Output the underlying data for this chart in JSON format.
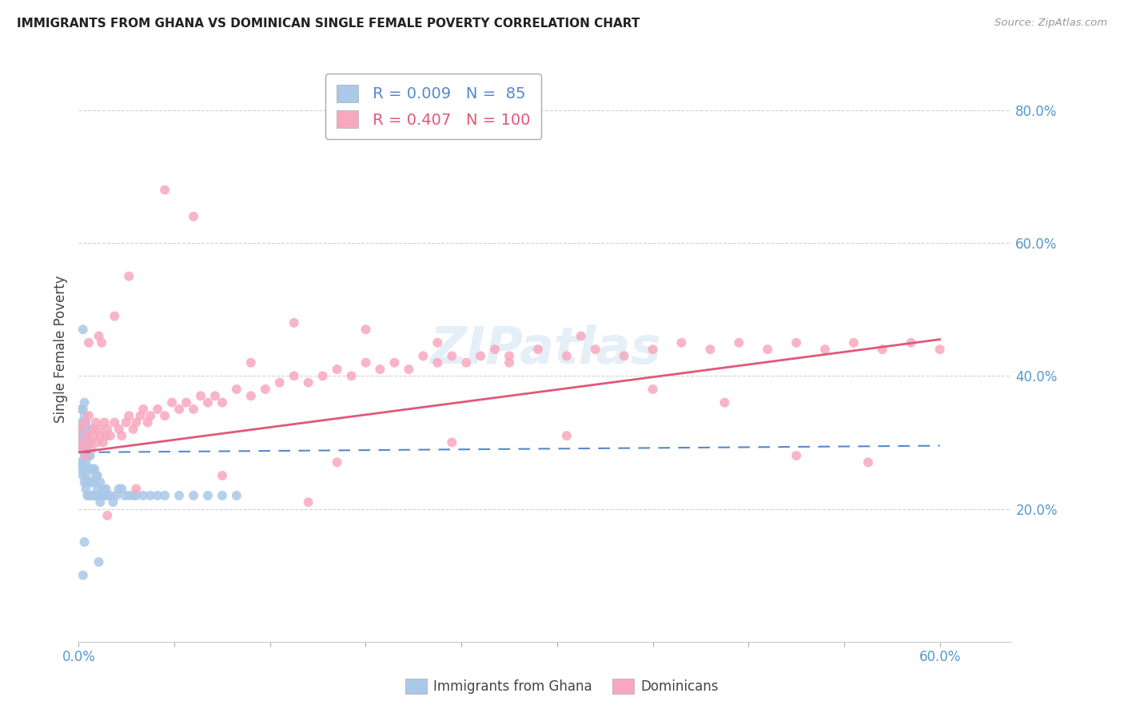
{
  "title": "IMMIGRANTS FROM GHANA VS DOMINICAN SINGLE FEMALE POVERTY CORRELATION CHART",
  "source": "Source: ZipAtlas.com",
  "ylabel": "Single Female Poverty",
  "ytick_labels": [
    "20.0%",
    "40.0%",
    "60.0%",
    "80.0%"
  ],
  "ytick_values": [
    0.2,
    0.4,
    0.6,
    0.8
  ],
  "xlim": [
    0.0,
    0.65
  ],
  "ylim": [
    0.0,
    0.88
  ],
  "ghana_R": 0.009,
  "ghana_N": 85,
  "dominican_R": 0.407,
  "dominican_N": 100,
  "ghana_color": "#aac8e8",
  "dominican_color": "#f8a8be",
  "ghana_line_color": "#5588cc",
  "dominican_line_color": "#e05878",
  "watermark": "ZIPatlas",
  "ghana_trend_x0": 0.0,
  "ghana_trend_y0": 0.285,
  "ghana_trend_x1": 0.6,
  "ghana_trend_y1": 0.295,
  "dominican_trend_x0": 0.0,
  "dominican_trend_y0": 0.285,
  "dominican_trend_x1": 0.6,
  "dominican_trend_y1": 0.455,
  "ghana_scatter_x": [
    0.001,
    0.001,
    0.001,
    0.002,
    0.002,
    0.002,
    0.002,
    0.002,
    0.003,
    0.003,
    0.003,
    0.003,
    0.003,
    0.003,
    0.003,
    0.004,
    0.004,
    0.004,
    0.004,
    0.004,
    0.004,
    0.004,
    0.005,
    0.005,
    0.005,
    0.005,
    0.005,
    0.005,
    0.006,
    0.006,
    0.006,
    0.006,
    0.006,
    0.007,
    0.007,
    0.007,
    0.007,
    0.007,
    0.007,
    0.008,
    0.008,
    0.008,
    0.008,
    0.009,
    0.009,
    0.009,
    0.01,
    0.01,
    0.01,
    0.011,
    0.011,
    0.011,
    0.012,
    0.012,
    0.013,
    0.013,
    0.014,
    0.015,
    0.015,
    0.016,
    0.017,
    0.018,
    0.019,
    0.02,
    0.022,
    0.024,
    0.026,
    0.028,
    0.03,
    0.032,
    0.035,
    0.038,
    0.04,
    0.045,
    0.05,
    0.055,
    0.06,
    0.07,
    0.08,
    0.09,
    0.1,
    0.11,
    0.014,
    0.003,
    0.004
  ],
  "ghana_scatter_y": [
    0.3,
    0.27,
    0.32,
    0.26,
    0.29,
    0.31,
    0.33,
    0.35,
    0.25,
    0.27,
    0.29,
    0.31,
    0.33,
    0.35,
    0.47,
    0.24,
    0.26,
    0.28,
    0.3,
    0.32,
    0.34,
    0.36,
    0.23,
    0.25,
    0.27,
    0.29,
    0.31,
    0.33,
    0.22,
    0.24,
    0.26,
    0.28,
    0.3,
    0.22,
    0.24,
    0.26,
    0.28,
    0.3,
    0.32,
    0.22,
    0.24,
    0.26,
    0.28,
    0.22,
    0.24,
    0.26,
    0.22,
    0.24,
    0.26,
    0.22,
    0.24,
    0.26,
    0.22,
    0.25,
    0.23,
    0.25,
    0.22,
    0.21,
    0.24,
    0.22,
    0.23,
    0.22,
    0.23,
    0.22,
    0.22,
    0.21,
    0.22,
    0.23,
    0.23,
    0.22,
    0.22,
    0.22,
    0.22,
    0.22,
    0.22,
    0.22,
    0.22,
    0.22,
    0.22,
    0.22,
    0.22,
    0.22,
    0.12,
    0.1,
    0.15
  ],
  "dominican_scatter_x": [
    0.001,
    0.002,
    0.003,
    0.004,
    0.005,
    0.006,
    0.007,
    0.008,
    0.009,
    0.01,
    0.011,
    0.012,
    0.013,
    0.014,
    0.015,
    0.016,
    0.017,
    0.018,
    0.019,
    0.02,
    0.022,
    0.025,
    0.028,
    0.03,
    0.033,
    0.035,
    0.038,
    0.04,
    0.043,
    0.045,
    0.048,
    0.05,
    0.055,
    0.06,
    0.065,
    0.07,
    0.075,
    0.08,
    0.085,
    0.09,
    0.095,
    0.1,
    0.11,
    0.12,
    0.13,
    0.14,
    0.15,
    0.16,
    0.17,
    0.18,
    0.19,
    0.2,
    0.21,
    0.22,
    0.23,
    0.24,
    0.25,
    0.26,
    0.27,
    0.28,
    0.29,
    0.3,
    0.32,
    0.34,
    0.36,
    0.38,
    0.4,
    0.42,
    0.44,
    0.46,
    0.48,
    0.5,
    0.52,
    0.54,
    0.56,
    0.58,
    0.6,
    0.007,
    0.014,
    0.025,
    0.035,
    0.06,
    0.08,
    0.12,
    0.15,
    0.2,
    0.25,
    0.3,
    0.35,
    0.4,
    0.45,
    0.5,
    0.55,
    0.16,
    0.02,
    0.04,
    0.1,
    0.18,
    0.26,
    0.34
  ],
  "dominican_scatter_y": [
    0.32,
    0.3,
    0.29,
    0.33,
    0.28,
    0.31,
    0.34,
    0.3,
    0.29,
    0.32,
    0.31,
    0.33,
    0.3,
    0.32,
    0.31,
    0.45,
    0.3,
    0.33,
    0.31,
    0.32,
    0.31,
    0.33,
    0.32,
    0.31,
    0.33,
    0.34,
    0.32,
    0.33,
    0.34,
    0.35,
    0.33,
    0.34,
    0.35,
    0.34,
    0.36,
    0.35,
    0.36,
    0.35,
    0.37,
    0.36,
    0.37,
    0.36,
    0.38,
    0.37,
    0.38,
    0.39,
    0.4,
    0.39,
    0.4,
    0.41,
    0.4,
    0.42,
    0.41,
    0.42,
    0.41,
    0.43,
    0.42,
    0.43,
    0.42,
    0.43,
    0.44,
    0.43,
    0.44,
    0.43,
    0.44,
    0.43,
    0.44,
    0.45,
    0.44,
    0.45,
    0.44,
    0.45,
    0.44,
    0.45,
    0.44,
    0.45,
    0.44,
    0.45,
    0.46,
    0.49,
    0.55,
    0.68,
    0.64,
    0.42,
    0.48,
    0.47,
    0.45,
    0.42,
    0.46,
    0.38,
    0.36,
    0.28,
    0.27,
    0.21,
    0.19,
    0.23,
    0.25,
    0.27,
    0.3,
    0.31
  ]
}
